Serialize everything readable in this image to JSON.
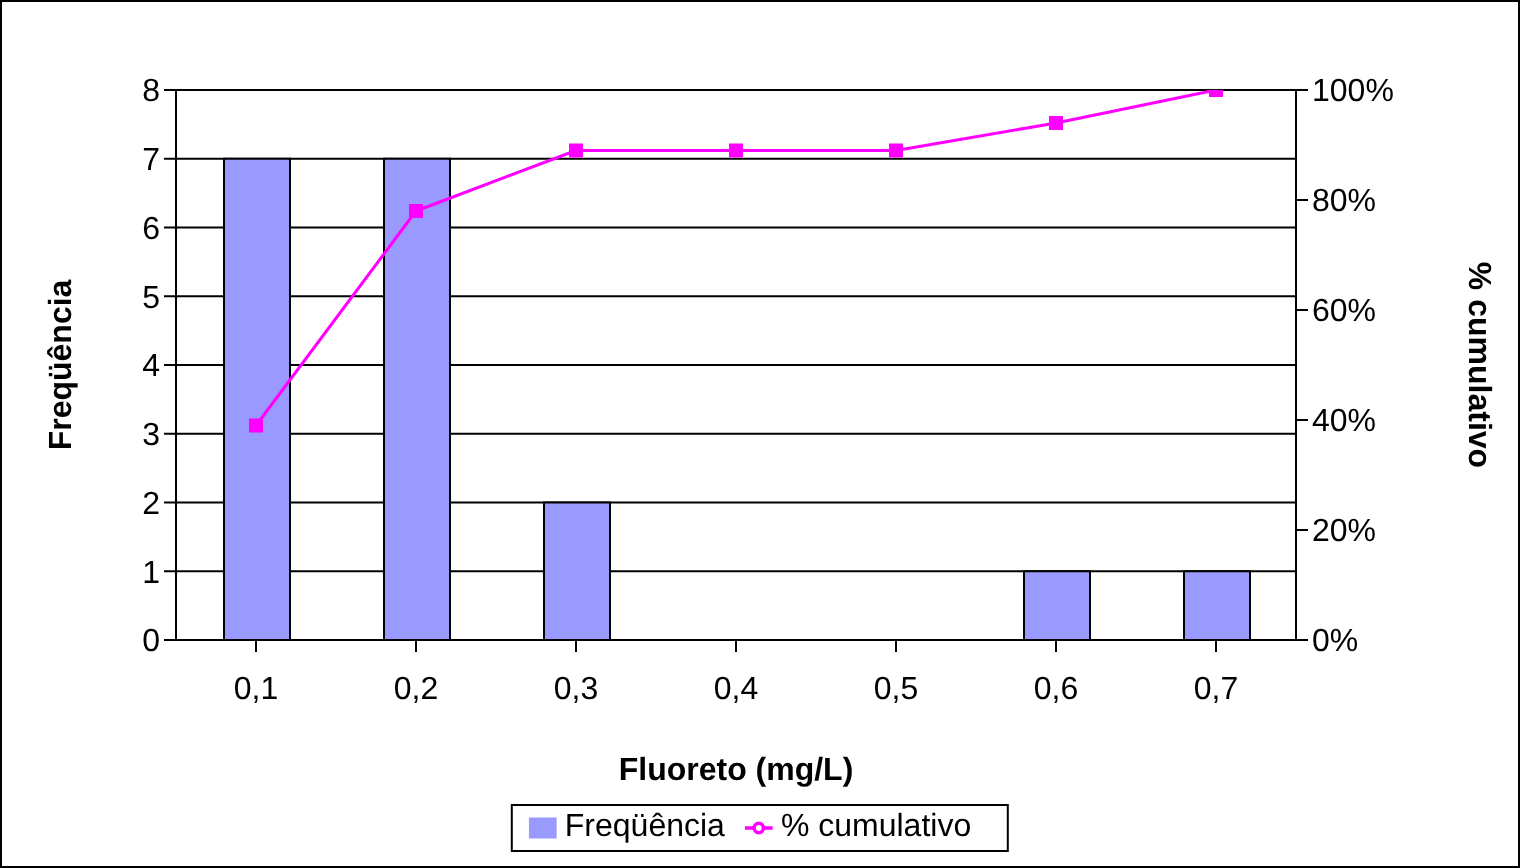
{
  "chart_data": {
    "type": "bar",
    "xlabel": "Fluoreto (mg/L)",
    "ylabel": "Freqüência",
    "y2label": "% cumulativo",
    "categories": [
      "0,1",
      "0,2",
      "0,3",
      "0,4",
      "0,5",
      "0,6",
      "0,7"
    ],
    "series": [
      {
        "name": "Freqüência",
        "color": "#9999ff",
        "values": [
          7,
          7,
          2,
          0,
          0,
          1,
          1
        ]
      },
      {
        "name": "% cumulativo",
        "type": "line",
        "axis": "y2",
        "color": "#ff00ff",
        "marker": "square",
        "values": [
          39,
          78,
          89,
          89,
          89,
          94,
          100
        ]
      }
    ],
    "ylim": [
      0,
      8
    ],
    "yticks": [
      0,
      1,
      2,
      3,
      4,
      5,
      6,
      7,
      8
    ],
    "y2lim": [
      0,
      100
    ],
    "y2ticks": [
      {
        "value": 0,
        "label": "0%"
      },
      {
        "value": 20,
        "label": "20%"
      },
      {
        "value": 40,
        "label": "40%"
      },
      {
        "value": 60,
        "label": "60%"
      },
      {
        "value": 80,
        "label": "80%"
      },
      {
        "value": 100,
        "label": "100%"
      }
    ],
    "grid": "y",
    "legend": "bottom"
  }
}
